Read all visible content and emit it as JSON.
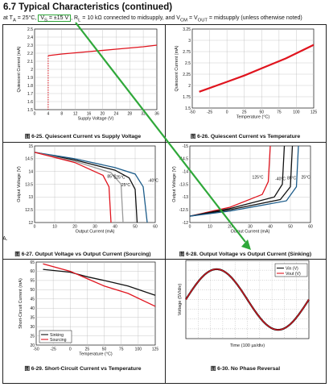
{
  "header": {
    "title": "6.7 Typical Characteristics (continued)",
    "cond_pre": "at T",
    "cond_a": "A",
    "cond_mid": " = 25°C, ",
    "cond_vs": "V",
    "cond_s": "S",
    "cond_vs_val": " = ±15 V",
    "cond_rl": ", R",
    "cond_l": "L",
    "cond_post": " = 10 kΩ connected to midsupply, and V",
    "cond_cm": "CM",
    "cond_eq": " = V",
    "cond_out": "OUT",
    "cond_end": " = midsupply (unless otherwise noted)"
  },
  "marker_a": "A.",
  "colors": {
    "accent": "#2fa83a",
    "red": "#e0141e",
    "black": "#111111"
  },
  "figures": {
    "f25": {
      "num": "图 6-25.",
      "caption": "Quiescent Current vs Supply Voltage"
    },
    "f26": {
      "num": "图 6-26.",
      "caption": "Quiescent Current vs Temperature"
    },
    "f27": {
      "num": "图 6-27.",
      "caption": "Output Voltage vs Output Current (Sourcing)"
    },
    "f28": {
      "num": "图 6-28.",
      "caption": "Output Voltage vs Output Current (Sinking)"
    },
    "f29": {
      "num": "图 6-29.",
      "caption": "Short-Circuit Current vs Temperature"
    },
    "f30": {
      "num": "图 6-30.",
      "caption": "No Phase Reversal"
    }
  },
  "chart_data": [
    {
      "type": "line",
      "xlabel": "Supply Voltage (V)",
      "ylabel": "Quiescent Current (mA)",
      "xlim": [
        0,
        36
      ],
      "ylim": [
        1.5,
        2.5
      ],
      "xticks": [
        "0",
        "4",
        "8",
        "12",
        "16",
        "20",
        "24",
        "28",
        "32",
        "36"
      ],
      "yticks": [
        "1.5",
        "1.6",
        "1.7",
        "1.8",
        "1.9",
        "2",
        "2.1",
        "2.2",
        "2.3",
        "2.4",
        "2.5"
      ],
      "series": [
        {
          "x": [
            4,
            8,
            16,
            24,
            32,
            36
          ],
          "y": [
            2.17,
            2.19,
            2.22,
            2.25,
            2.28,
            2.3
          ]
        }
      ],
      "grid": true
    },
    {
      "type": "line",
      "xlabel": "Temperature (°C)",
      "ylabel": "Quiescent Current (mA)",
      "xlim": [
        -50,
        125
      ],
      "ylim": [
        1.5,
        3.25
      ],
      "xticks": [
        "-50",
        "-25",
        "0",
        "25",
        "50",
        "75",
        "100",
        "125"
      ],
      "yticks": [
        "1.5",
        "1.75",
        "2",
        "2.25",
        "2.5",
        "2.75",
        "3",
        "3.25"
      ],
      "series": [
        {
          "x": [
            -40,
            0,
            25,
            50,
            85,
            125
          ],
          "y": [
            1.86,
            2.08,
            2.22,
            2.38,
            2.6,
            2.9
          ]
        }
      ],
      "grid": true
    },
    {
      "type": "line",
      "xlabel": "Output Current (mA)",
      "ylabel": "Output Voltage (V)",
      "xlim": [
        0,
        60
      ],
      "ylim": [
        12,
        15
      ],
      "xticks": [
        "0",
        "10",
        "20",
        "30",
        "40",
        "50",
        "60"
      ],
      "yticks": [
        "12",
        "12.5",
        "13",
        "13.5",
        "14",
        "14.5",
        "15"
      ],
      "series": [
        {
          "name": "25°C",
          "color": "#111111",
          "x": [
            0,
            20,
            40,
            47,
            50,
            51
          ],
          "y": [
            14.75,
            14.45,
            14.05,
            13.75,
            13.3,
            12
          ]
        },
        {
          "name": "-40°C",
          "color": "#1c5c8a",
          "x": [
            0,
            20,
            40,
            50,
            54,
            56
          ],
          "y": [
            14.75,
            14.5,
            14.15,
            13.9,
            13.4,
            12
          ]
        },
        {
          "name": "85°C",
          "color": "#9a9a9a",
          "x": [
            0,
            20,
            38,
            43,
            44
          ],
          "y": [
            14.75,
            14.4,
            13.95,
            13.5,
            12
          ]
        },
        {
          "name": "125°C",
          "color": "#e0141e",
          "x": [
            0,
            20,
            34,
            37,
            38
          ],
          "y": [
            14.75,
            14.35,
            13.85,
            13.4,
            12
          ]
        }
      ],
      "labels": [
        "25°C",
        "-40°C",
        "85°C",
        "125°C"
      ],
      "grid": true
    },
    {
      "type": "line",
      "xlabel": "Output Current (mA)",
      "ylabel": "Output Voltage (V)",
      "xlim": [
        0,
        60
      ],
      "ylim": [
        -15,
        -12
      ],
      "xticks": [
        "0",
        "10",
        "20",
        "30",
        "40",
        "50",
        "60"
      ],
      "yticks": [
        "-12",
        "-12.5",
        "-13",
        "-13.5",
        "-14",
        "-14.5",
        "-15"
      ],
      "series": [
        {
          "name": "125°C",
          "color": "#e0141e",
          "x": [
            0,
            20,
            36,
            39,
            40
          ],
          "y": [
            -14.75,
            -14.4,
            -13.9,
            -13.4,
            -12
          ]
        },
        {
          "name": "85°C",
          "color": "#111111",
          "x": [
            0,
            20,
            42,
            46,
            47
          ],
          "y": [
            -14.75,
            -14.45,
            -14.0,
            -13.5,
            -12
          ]
        },
        {
          "name": "25°C",
          "color": "#111111",
          "x": [
            0,
            20,
            45,
            50,
            51
          ],
          "y": [
            -14.75,
            -14.5,
            -14.1,
            -13.6,
            -12
          ]
        },
        {
          "name": "-40°C",
          "color": "#1c5c8a",
          "x": [
            0,
            20,
            48,
            53,
            54
          ],
          "y": [
            -14.75,
            -14.55,
            -14.15,
            -13.6,
            -12
          ]
        }
      ],
      "labels": [
        "125°C",
        "85°C",
        "-40°C",
        "25°C"
      ],
      "grid": true
    },
    {
      "type": "line",
      "xlabel": "Temperature (°C)",
      "ylabel": "Short-Circuit Current (mA)",
      "xlim": [
        -50,
        125
      ],
      "ylim": [
        20,
        65
      ],
      "xticks": [
        "-50",
        "-25",
        "0",
        "25",
        "50",
        "75",
        "100",
        "125"
      ],
      "yticks": [
        "20",
        "25",
        "30",
        "35",
        "40",
        "45",
        "50",
        "55",
        "60",
        "65"
      ],
      "series": [
        {
          "name": "Sinking",
          "color": "#111111",
          "x": [
            -40,
            0,
            25,
            50,
            85,
            125
          ],
          "y": [
            61,
            59.5,
            57,
            55,
            52,
            47
          ]
        },
        {
          "name": "Sourcing",
          "color": "#e0141e",
          "x": [
            -40,
            0,
            25,
            50,
            85,
            125
          ],
          "y": [
            64,
            60,
            56,
            52,
            48,
            41
          ]
        }
      ],
      "legend": [
        "Sinking",
        "Sourcing"
      ],
      "grid": true
    },
    {
      "type": "line",
      "xlabel": "Time (100 µs/div)",
      "ylabel": "Voltage (5V/div)",
      "series": [
        {
          "name": "Vin (V)",
          "color": "#111111",
          "x": [
            0,
            2.5,
            5,
            7.5,
            10
          ],
          "y": [
            0,
            3,
            0,
            -3,
            0
          ]
        },
        {
          "name": "Vout (V)",
          "color": "#e0141e",
          "x": [
            0,
            2.5,
            5,
            7.5,
            10
          ],
          "y": [
            0,
            3,
            0,
            -3,
            0
          ]
        }
      ],
      "legend": [
        "Vin (V)",
        "Vout (V)"
      ],
      "grid": true
    }
  ]
}
